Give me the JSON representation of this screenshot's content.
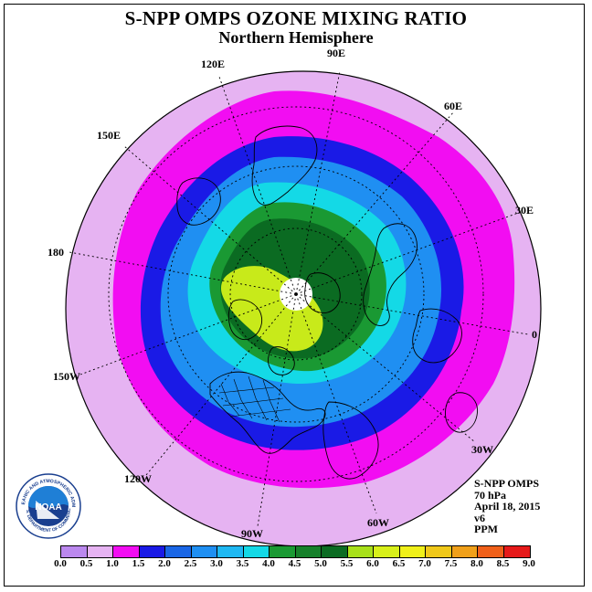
{
  "header": {
    "title": "S-NPP OMPS OZONE MIXING RATIO",
    "subtitle": "Northern Hemisphere"
  },
  "map": {
    "projection": "north-polar-stereographic",
    "longitude_labels": [
      "90E",
      "60E",
      "30E",
      "0",
      "30W",
      "60W",
      "90W",
      "120W",
      "150W",
      "180",
      "150E",
      "120E"
    ],
    "palette": {
      "ocean_outer": "#e6b3f2",
      "magenta": "#f20df2",
      "blue": "#1a1ae6",
      "mid_blue": "#1f8ff2",
      "cyan": "#14d9e6",
      "green": "#1a9933",
      "dark_green": "#0b6b22",
      "yellow_green": "#c8ea1a",
      "polar_gap": "#ffffff"
    }
  },
  "info": {
    "instrument": "S-NPP OMPS",
    "level": "70 hPa",
    "date": "April 18, 2015",
    "version": "v6",
    "units": "PPM"
  },
  "logo": {
    "text": "NOAA",
    "ring_text": "NATIONAL OCEANIC AND ATMOSPHERIC ADMINISTRATION",
    "ring_text_bottom": "U.S. DEPARTMENT OF COMMERCE",
    "icon": "noaa-logo-icon"
  },
  "colorbar": {
    "ticks": [
      "0.0",
      "0.5",
      "1.0",
      "1.5",
      "2.0",
      "2.5",
      "3.0",
      "3.5",
      "4.0",
      "4.5",
      "5.0",
      "5.5",
      "6.0",
      "6.5",
      "7.0",
      "7.5",
      "8.0",
      "8.5",
      "9.0"
    ],
    "colors": [
      "#bb88ee",
      "#e6b3f2",
      "#f20df2",
      "#1a1ae6",
      "#1a66e6",
      "#1f8ff2",
      "#1fb8f2",
      "#14d9e6",
      "#1a9933",
      "#16802a",
      "#0b6b22",
      "#a8e01a",
      "#d8f01a",
      "#f0f01a",
      "#f0c81a",
      "#f0a01a",
      "#f0601a",
      "#e61a1a",
      "#8b5a3a"
    ]
  }
}
